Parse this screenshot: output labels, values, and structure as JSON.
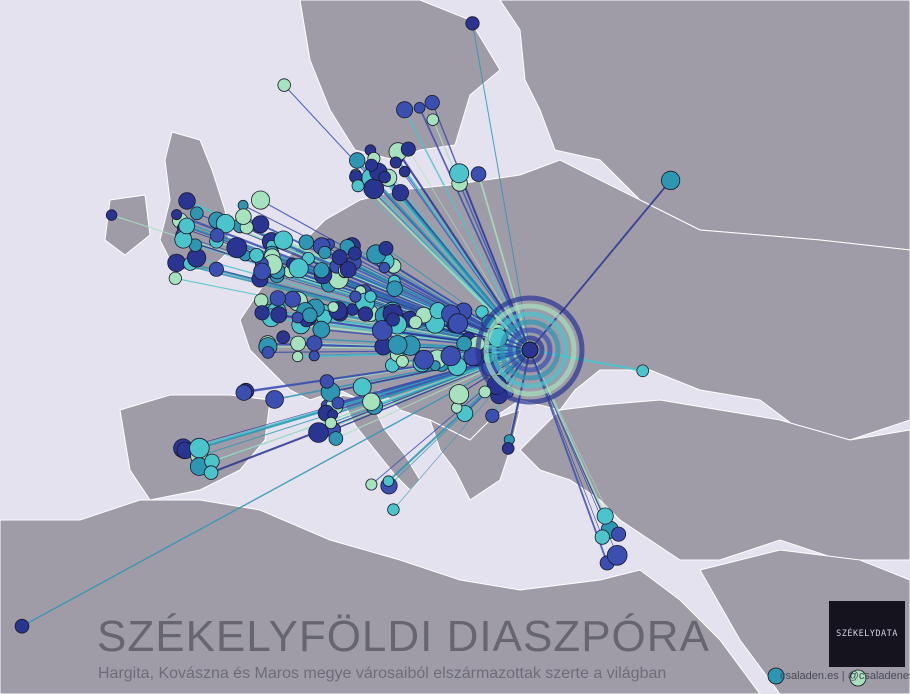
{
  "map": {
    "title": "SZÉKELYFÖLDI DIASZPÓRA",
    "subtitle": "Hargita, Kovászna és Maros megye városaiból elszármazottak szerte a világban",
    "credit": "csaladen.es | @csaladenes",
    "logo_text": "SZÉKELYDATA",
    "colors": {
      "water": "#e4e2ee",
      "land": "#9f9ca8",
      "border": "#ffffff",
      "series": [
        "#2a3592",
        "#3a4fb0",
        "#2e95b3",
        "#4cc4cc",
        "#a6e2bd"
      ]
    }
  }
}
